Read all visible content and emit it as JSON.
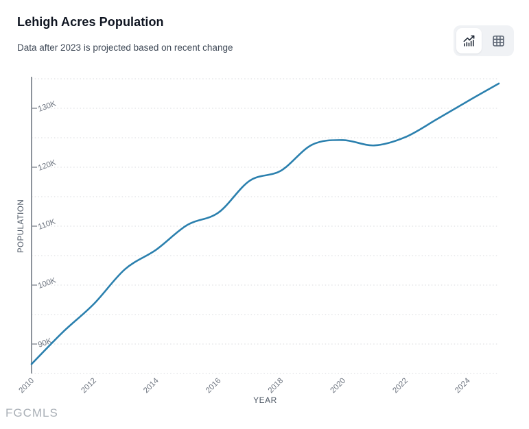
{
  "header": {
    "title": "Lehigh Acres Population",
    "subtitle": "Data after 2023 is projected based on recent change"
  },
  "toolbar": {
    "icons": {
      "chart_view": "trending-bar-chart-icon",
      "table_view": "table-grid-icon"
    },
    "active_view": "chart"
  },
  "watermark": "FGCMLS",
  "chart_data": {
    "type": "line",
    "title": "Lehigh Acres Population",
    "subtitle": "Data after 2023 is projected based on recent change",
    "xlabel": "YEAR",
    "ylabel": "POPULATION",
    "x": [
      2010,
      2011,
      2012,
      2013,
      2014,
      2015,
      2016,
      2017,
      2018,
      2019,
      2020,
      2021,
      2022,
      2023,
      2024,
      2025
    ],
    "series": [
      {
        "name": "Population",
        "values": [
          86600,
          92000,
          96800,
          102700,
          106000,
          110200,
          112300,
          117700,
          119400,
          123800,
          124600,
          123700,
          125100,
          128100,
          131200,
          134200
        ]
      }
    ],
    "projected_after": 2023,
    "ylim": [
      85000,
      135000
    ],
    "grid_step": 5000,
    "grid": true,
    "legend": false,
    "ytick_values": [
      90000,
      100000,
      110000,
      120000,
      130000
    ],
    "ytick_labels": [
      "90K",
      "100K",
      "110K",
      "120K",
      "130K"
    ],
    "xtick_values": [
      2010,
      2012,
      2014,
      2016,
      2018,
      2020,
      2022,
      2024
    ],
    "xtick_labels": [
      "2010",
      "2012",
      "2014",
      "2016",
      "2018",
      "2020",
      "2022",
      "2024"
    ],
    "line_color": "#2b80ae",
    "grid_color": "#d8dadd",
    "axis_color": "#8d939b",
    "tick_label_color": "#6e7580",
    "axis_title_color": "#4a5462"
  }
}
